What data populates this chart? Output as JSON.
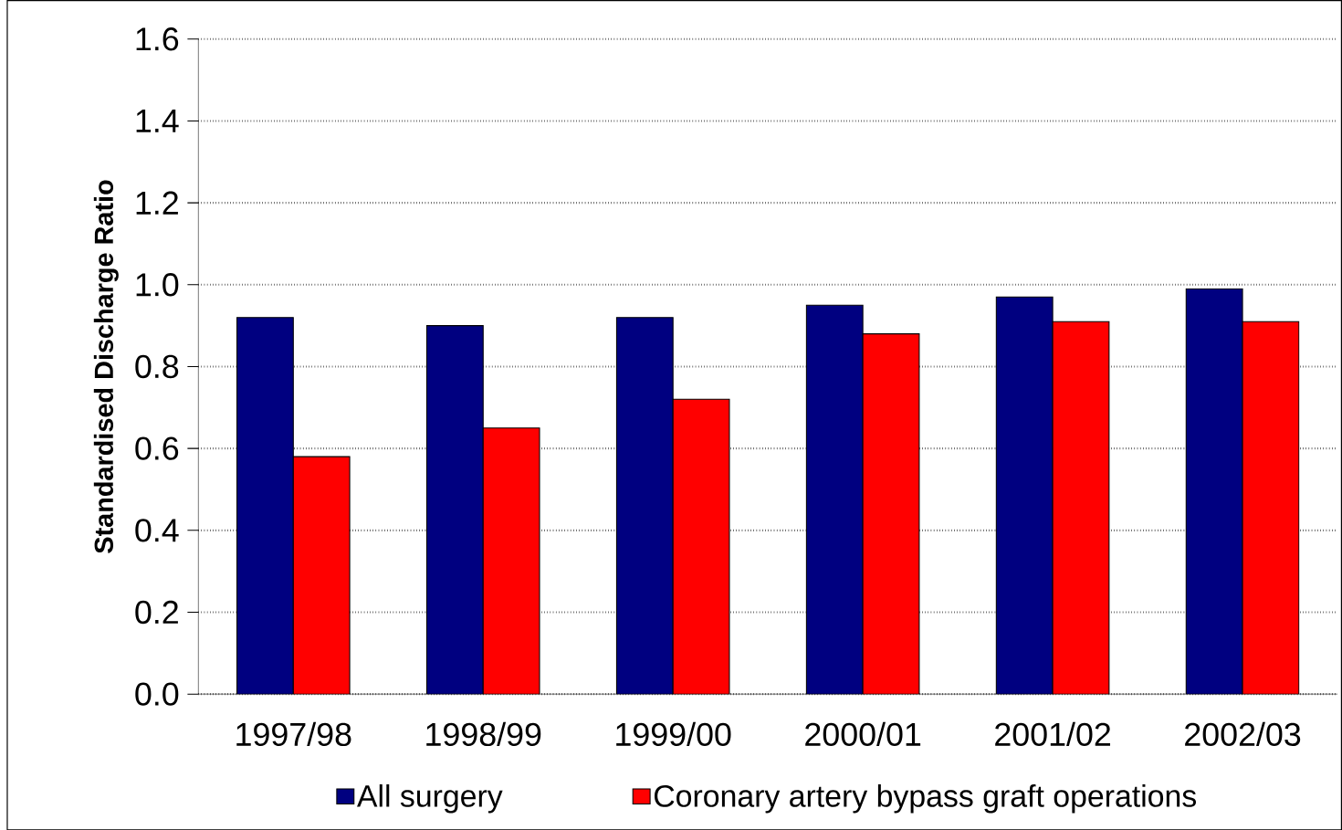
{
  "chart_data": {
    "type": "bar",
    "ylabel": "Standardised Discharge Ratio",
    "categories": [
      "1997/98",
      "1998/99",
      "1999/00",
      "2000/01",
      "2001/02",
      "2002/03"
    ],
    "series": [
      {
        "name": "All surgery",
        "color": "#000080",
        "values": [
          0.92,
          0.9,
          0.92,
          0.95,
          0.97,
          0.99
        ]
      },
      {
        "name": "Coronary artery bypass graft operations",
        "color": "#ff0000",
        "values": [
          0.58,
          0.65,
          0.72,
          0.88,
          0.91,
          0.91
        ]
      }
    ],
    "ylim": [
      0,
      1.6
    ],
    "yticks": [
      {
        "value": 0,
        "label": "0.0"
      },
      {
        "value": 0.2,
        "label": "0.2"
      },
      {
        "value": 0.4,
        "label": "0.4"
      },
      {
        "value": 0.6,
        "label": "0.6"
      },
      {
        "value": 0.8,
        "label": "0.8"
      },
      {
        "value": 1.0,
        "label": "1.0"
      },
      {
        "value": 1.2,
        "label": "1.2"
      },
      {
        "value": 1.4,
        "label": "1.4"
      },
      {
        "value": 1.6,
        "label": "1.6"
      }
    ],
    "grid": "y",
    "legend": "bottom"
  }
}
